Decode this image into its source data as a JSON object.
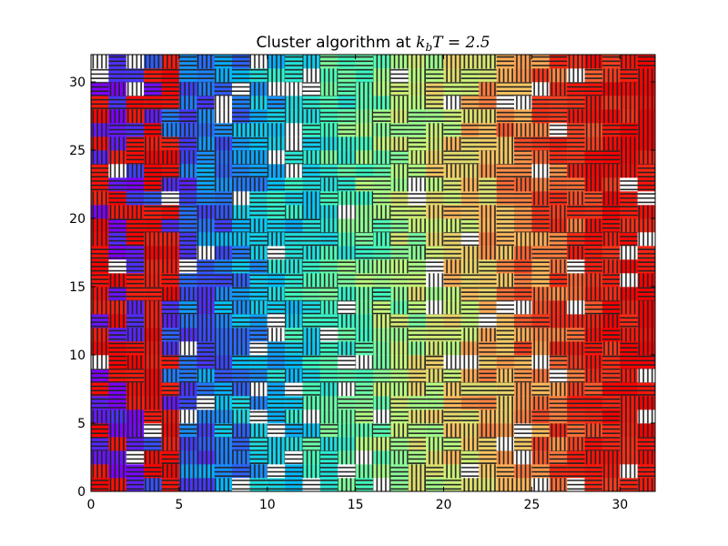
{
  "chart_data": {
    "type": "heatmap",
    "title_prefix": "Cluster algorithm at ",
    "title_math": "k",
    "title_math_sub": "b",
    "title_math_rest": "T",
    "title_math_value": " = 2.5",
    "xlim": [
      0,
      32
    ],
    "ylim": [
      0,
      32
    ],
    "xticks": [
      "0",
      "5",
      "10",
      "15",
      "20",
      "25",
      "30"
    ],
    "yticks": [
      "0",
      "5",
      "10",
      "15",
      "20",
      "25",
      "30"
    ],
    "xtick_values": [
      0,
      5,
      10,
      15,
      20,
      25,
      30
    ],
    "ytick_values": [
      0,
      5,
      10,
      15,
      20,
      25,
      30
    ],
    "grid": false,
    "lattice_size": 32,
    "colormap": "jet",
    "hatch_horizontal": "-",
    "hatch_vertical": "|",
    "colormap_stops": [
      "#7f00ff",
      "#3f3fff",
      "#00bfff",
      "#3fffbf",
      "#bfff7f",
      "#ffbf5f",
      "#ff3f1f",
      "#ff0000"
    ],
    "spin_note": "Each lattice site hatched by spin orientation; cell fill colored by cluster position"
  }
}
